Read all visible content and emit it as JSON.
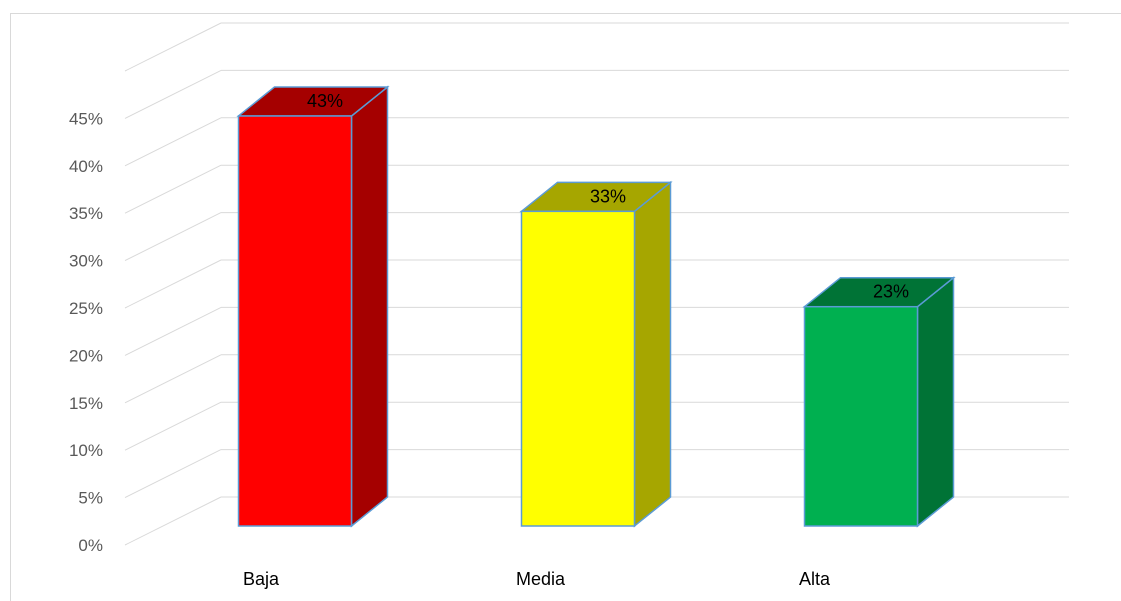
{
  "chart_data": {
    "type": "bar",
    "style": "3d-column",
    "categories": [
      "Baja",
      "Media",
      "Alta"
    ],
    "values": [
      43,
      33,
      23
    ],
    "data_labels": [
      "43%",
      "33%",
      "23%"
    ],
    "colors": [
      "#ff0000",
      "#ffff00",
      "#00b050"
    ],
    "side_colors": [
      "#a50000",
      "#a6a600",
      "#007336"
    ],
    "edge_color": "#5b9bd5",
    "y_ticks": [
      "0%",
      "5%",
      "10%",
      "15%",
      "20%",
      "25%",
      "30%",
      "35%",
      "40%",
      "45%"
    ],
    "ylim": [
      0,
      50
    ],
    "grid": true,
    "legend": "none"
  }
}
